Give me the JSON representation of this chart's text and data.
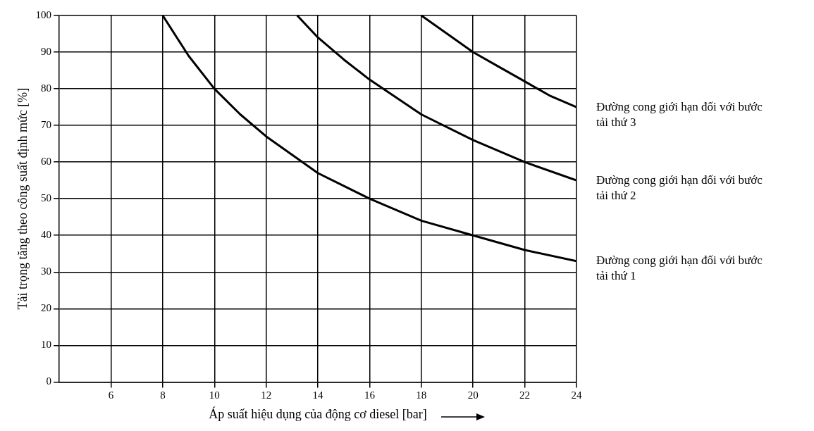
{
  "chart_data": {
    "type": "line",
    "xlabel": "Áp suất hiệu dụng của động cơ diesel [bar]",
    "ylabel": "Tải trọng tăng theo công suất định mức [%]",
    "xlim": [
      4,
      24
    ],
    "xticks": [
      6,
      8,
      10,
      12,
      14,
      16,
      18,
      20,
      22,
      24
    ],
    "ylim": [
      0,
      100
    ],
    "yticks": [
      0,
      10,
      20,
      30,
      40,
      50,
      60,
      70,
      80,
      90,
      100
    ],
    "grid": true,
    "legend": false,
    "marker": "none",
    "line_style": "solid",
    "series": [
      {
        "name": "Đường cong giới hạn đối với bước tải thứ 3",
        "color": "#000000",
        "x": [
          18,
          19,
          20,
          21,
          22,
          23,
          24
        ],
        "values": [
          100,
          95,
          90,
          86,
          82,
          78,
          75
        ]
      },
      {
        "name": "Đường cong giới hạn đối với bước tải thứ 2",
        "color": "#000000",
        "x": [
          13.2,
          14,
          15,
          16,
          18,
          20,
          22,
          24
        ],
        "values": [
          100,
          94,
          88,
          82.5,
          73,
          66,
          60,
          55
        ]
      },
      {
        "name": "Đường cong giới hạn đối với bước tải thứ 1",
        "color": "#000000",
        "x": [
          8,
          9,
          10,
          11,
          12,
          13,
          14,
          16,
          18,
          20,
          22,
          24
        ],
        "values": [
          100,
          89,
          80,
          73,
          67,
          62,
          57,
          50,
          44,
          40,
          36,
          33
        ]
      }
    ]
  }
}
